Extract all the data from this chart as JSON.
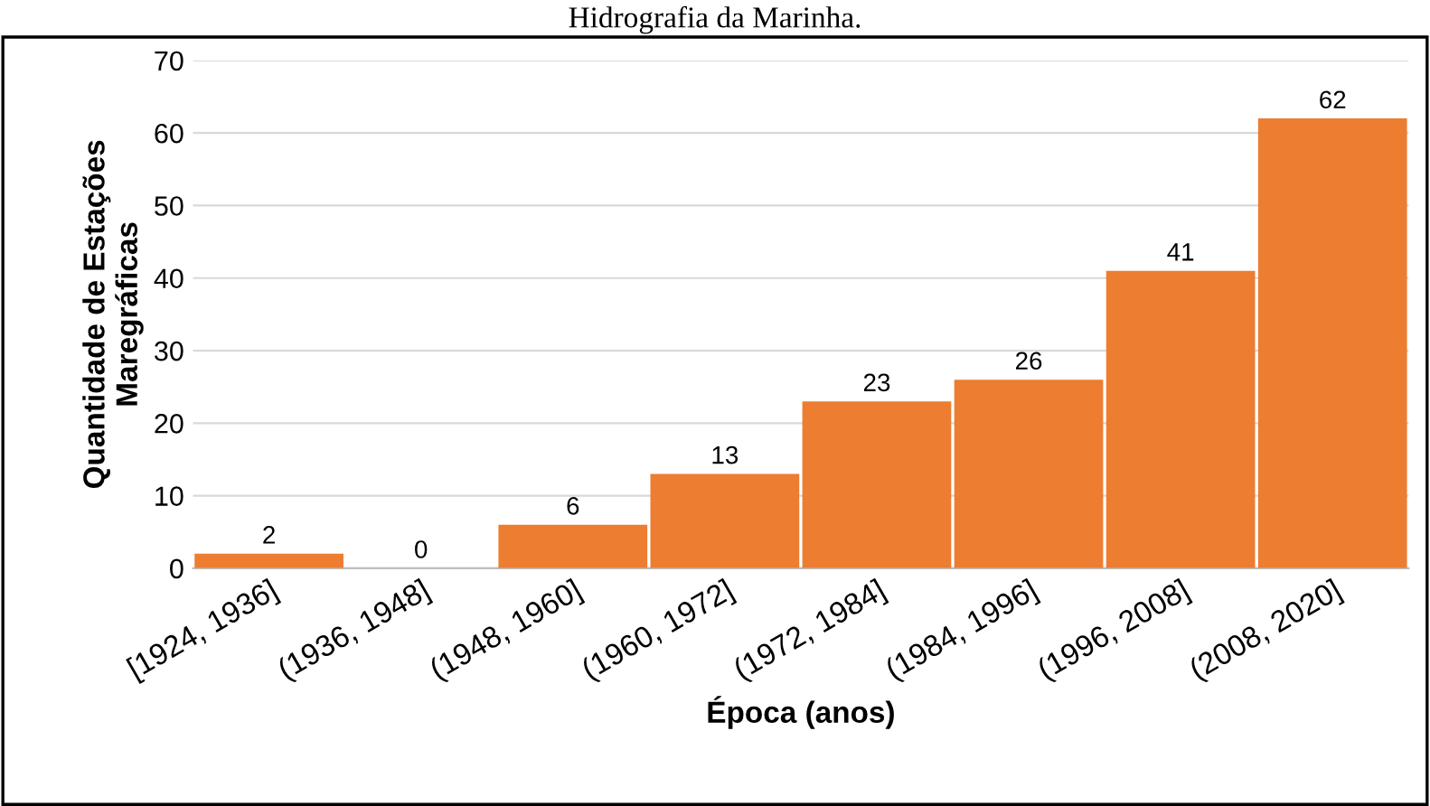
{
  "chart_data": {
    "type": "bar",
    "title": "Hidrografia da Marinha.",
    "xlabel": "Época (anos)",
    "ylabel": "Quantidade de Estações\nMaregráficas",
    "categories": [
      "[1924, 1936]",
      "(1936, 1948]",
      "(1948, 1960]",
      "(1960, 1972]",
      "(1972, 1984]",
      "(1984, 1996]",
      "(1996, 2008]",
      "(2008, 2020]"
    ],
    "values": [
      2,
      0,
      6,
      13,
      23,
      26,
      41,
      62
    ],
    "color": "#ed7d31",
    "ylim": [
      0,
      70
    ],
    "yticks": [
      0,
      10,
      20,
      30,
      40,
      50,
      60,
      70
    ],
    "grid": "y",
    "data_labels": true
  }
}
